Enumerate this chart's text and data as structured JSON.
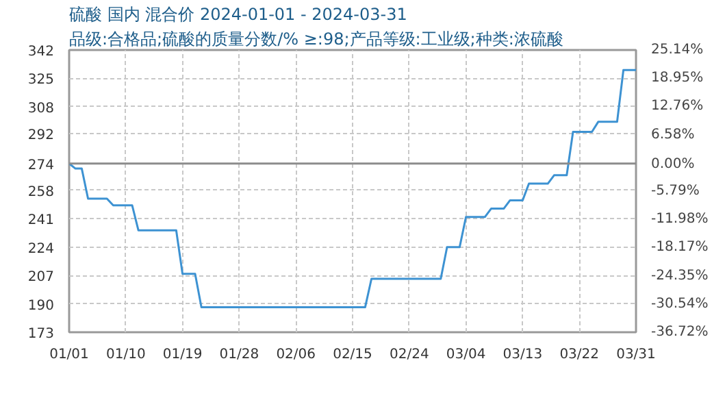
{
  "chart_data": {
    "type": "line",
    "title": "硫酸 国内 混合价 2024-01-01 - 2024-03-31",
    "subtitle": "品级:合格品;硫酸的质量分数/% ≥:98;产品等级:工业级;种类:浓硫酸",
    "x": [
      "2024-01-01",
      "2024-01-02",
      "2024-01-03",
      "2024-01-04",
      "2024-01-07",
      "2024-01-08",
      "2024-01-11",
      "2024-01-12",
      "2024-01-18",
      "2024-01-19",
      "2024-01-21",
      "2024-01-22",
      "2024-02-17",
      "2024-02-18",
      "2024-02-29",
      "2024-03-01",
      "2024-03-03",
      "2024-03-04",
      "2024-03-07",
      "2024-03-08",
      "2024-03-10",
      "2024-03-11",
      "2024-03-13",
      "2024-03-14",
      "2024-03-17",
      "2024-03-18",
      "2024-03-20",
      "2024-03-21",
      "2024-03-24",
      "2024-03-25",
      "2024-03-28",
      "2024-03-29",
      "2024-03-31"
    ],
    "series": [
      {
        "color": "#3d92d2",
        "values": [
          274,
          271,
          271,
          253,
          253,
          249,
          249,
          234,
          234,
          208,
          208,
          188,
          188,
          205,
          205,
          224,
          224,
          242,
          242,
          247,
          247,
          252,
          252,
          262,
          262,
          267,
          267,
          293,
          293,
          299,
          299,
          330,
          330
        ]
      }
    ],
    "xlim": [
      "2024-01-01",
      "2024-03-31"
    ],
    "xticks": [
      {
        "value": "2024-01-01",
        "label": "01/01"
      },
      {
        "value": "2024-01-10",
        "label": "01/10"
      },
      {
        "value": "2024-01-19",
        "label": "01/19"
      },
      {
        "value": "2024-01-28",
        "label": "01/28"
      },
      {
        "value": "2024-02-06",
        "label": "02/06"
      },
      {
        "value": "2024-02-15",
        "label": "02/15"
      },
      {
        "value": "2024-02-24",
        "label": "02/24"
      },
      {
        "value": "2024-03-04",
        "label": "03/04"
      },
      {
        "value": "2024-03-13",
        "label": "03/13"
      },
      {
        "value": "2024-03-22",
        "label": "03/22"
      },
      {
        "value": "2024-03-31",
        "label": "03/31"
      }
    ],
    "ylim": [
      173,
      342
    ],
    "yticks": [
      173,
      190,
      207,
      224,
      241,
      258,
      274,
      292,
      308,
      325,
      342
    ],
    "y2lim": [
      -36.72,
      25.14
    ],
    "y2ticks": [
      {
        "value": -36.72,
        "label": "-36.72%"
      },
      {
        "value": -30.54,
        "label": "-30.54%"
      },
      {
        "value": -24.35,
        "label": "-24.35%"
      },
      {
        "value": -18.17,
        "label": "-18.17%"
      },
      {
        "value": -11.98,
        "label": "-11.98%"
      },
      {
        "value": -5.79,
        "label": "-5.79%"
      },
      {
        "value": 0,
        "label": "0.00%"
      },
      {
        "value": 6.58,
        "label": "6.58%"
      },
      {
        "value": 12.76,
        "label": "12.76%"
      },
      {
        "value": 18.95,
        "label": "18.95%"
      },
      {
        "value": 25.14,
        "label": "25.14%"
      }
    ],
    "ref_lines": [
      {
        "axis": "y",
        "value": 274,
        "color": "#8c8c8c"
      }
    ],
    "grid": true,
    "marker": "none",
    "line_style": "solid"
  }
}
